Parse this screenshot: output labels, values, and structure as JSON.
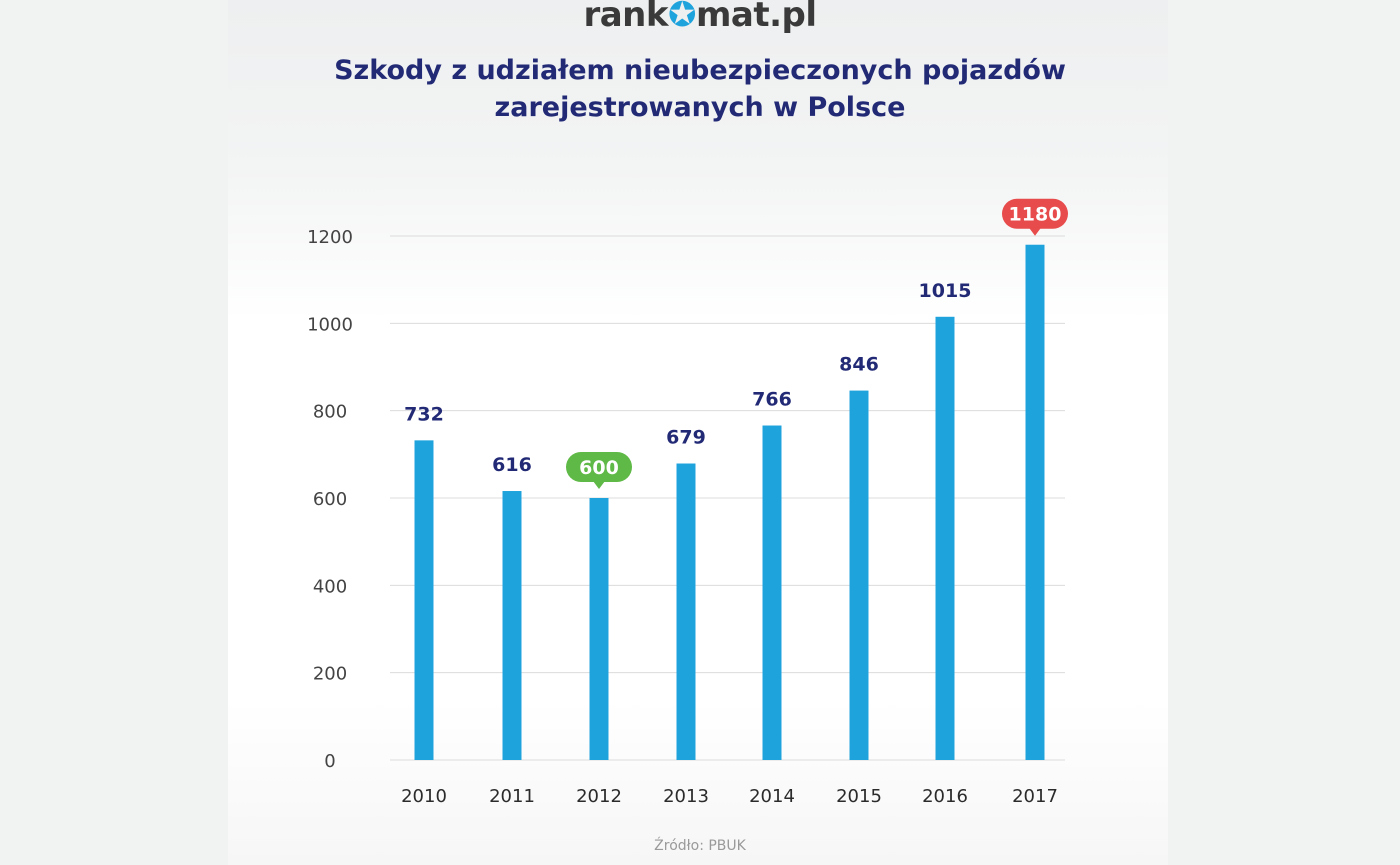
{
  "brand": {
    "logo_prefix": "rank",
    "logo_mark": "✪",
    "logo_suffix": "mat.pl",
    "logo_text": "rankomat.pl",
    "accent_color": "#1fa3dd"
  },
  "source_text": "Źródło: PBUK",
  "chart_data": {
    "type": "bar",
    "title": "Szkody z udziałem nieubezpieczonych pojazdów zarejestrowanych w Polsce",
    "title_lines": [
      "Szkody z udziałem nieubezpieczonych pojazdów",
      "zarejestrowanych w Polsce"
    ],
    "xlabel": "",
    "ylabel": "",
    "categories": [
      "2010",
      "2011",
      "2012",
      "2013",
      "2014",
      "2015",
      "2016",
      "2017"
    ],
    "values": [
      732,
      616,
      600,
      679,
      766,
      846,
      1015,
      1180
    ],
    "value_labels": [
      "732",
      "616",
      "600",
      "679",
      "766",
      "846",
      "1015",
      "1180"
    ],
    "highlights": {
      "min_index": 2,
      "min_color": "#5fb946",
      "max_index": 7,
      "max_color": "#e84b4b"
    },
    "ylim": [
      0,
      1200
    ],
    "yticks": [
      0,
      200,
      400,
      600,
      800,
      1000,
      1200
    ],
    "bar_color": "#1fa3dd",
    "label_color": "#222a76",
    "grid": true,
    "legend": "none"
  }
}
